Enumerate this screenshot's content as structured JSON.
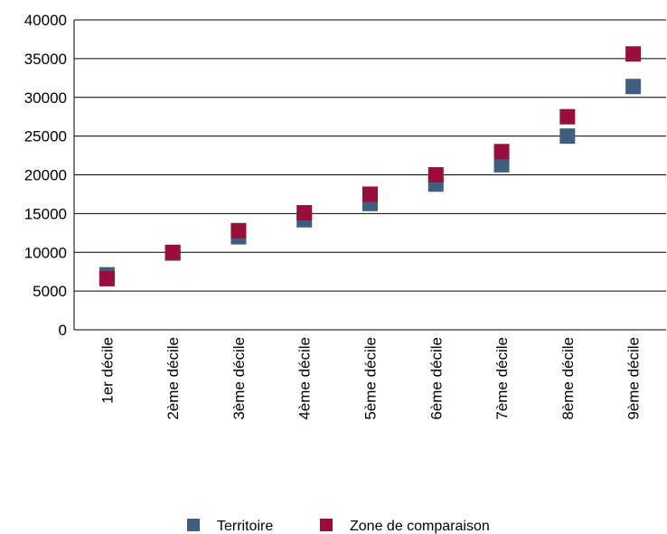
{
  "chart_data": {
    "type": "scatter",
    "categories": [
      "1er décile",
      "2ème décile",
      "3ème décile",
      "4ème décile",
      "5ème décile",
      "6ème décile",
      "7ème décile",
      "8ème décile",
      "9ème décile"
    ],
    "series": [
      {
        "name": "Territoire",
        "color": "#3e5f80",
        "values": [
          7100,
          9900,
          12000,
          14200,
          16300,
          18800,
          21300,
          25000,
          31400
        ]
      },
      {
        "name": "Zone de comparaison",
        "color": "#9b0d3b",
        "values": [
          6600,
          10000,
          12800,
          15100,
          17500,
          20000,
          23000,
          27500,
          35600
        ]
      }
    ],
    "ylim": [
      0,
      40000
    ],
    "yticks": [
      0,
      5000,
      10000,
      15000,
      20000,
      25000,
      30000,
      35000,
      40000
    ],
    "title": "",
    "xlabel": "",
    "ylabel": "",
    "grid": true,
    "legend_position": "bottom"
  }
}
